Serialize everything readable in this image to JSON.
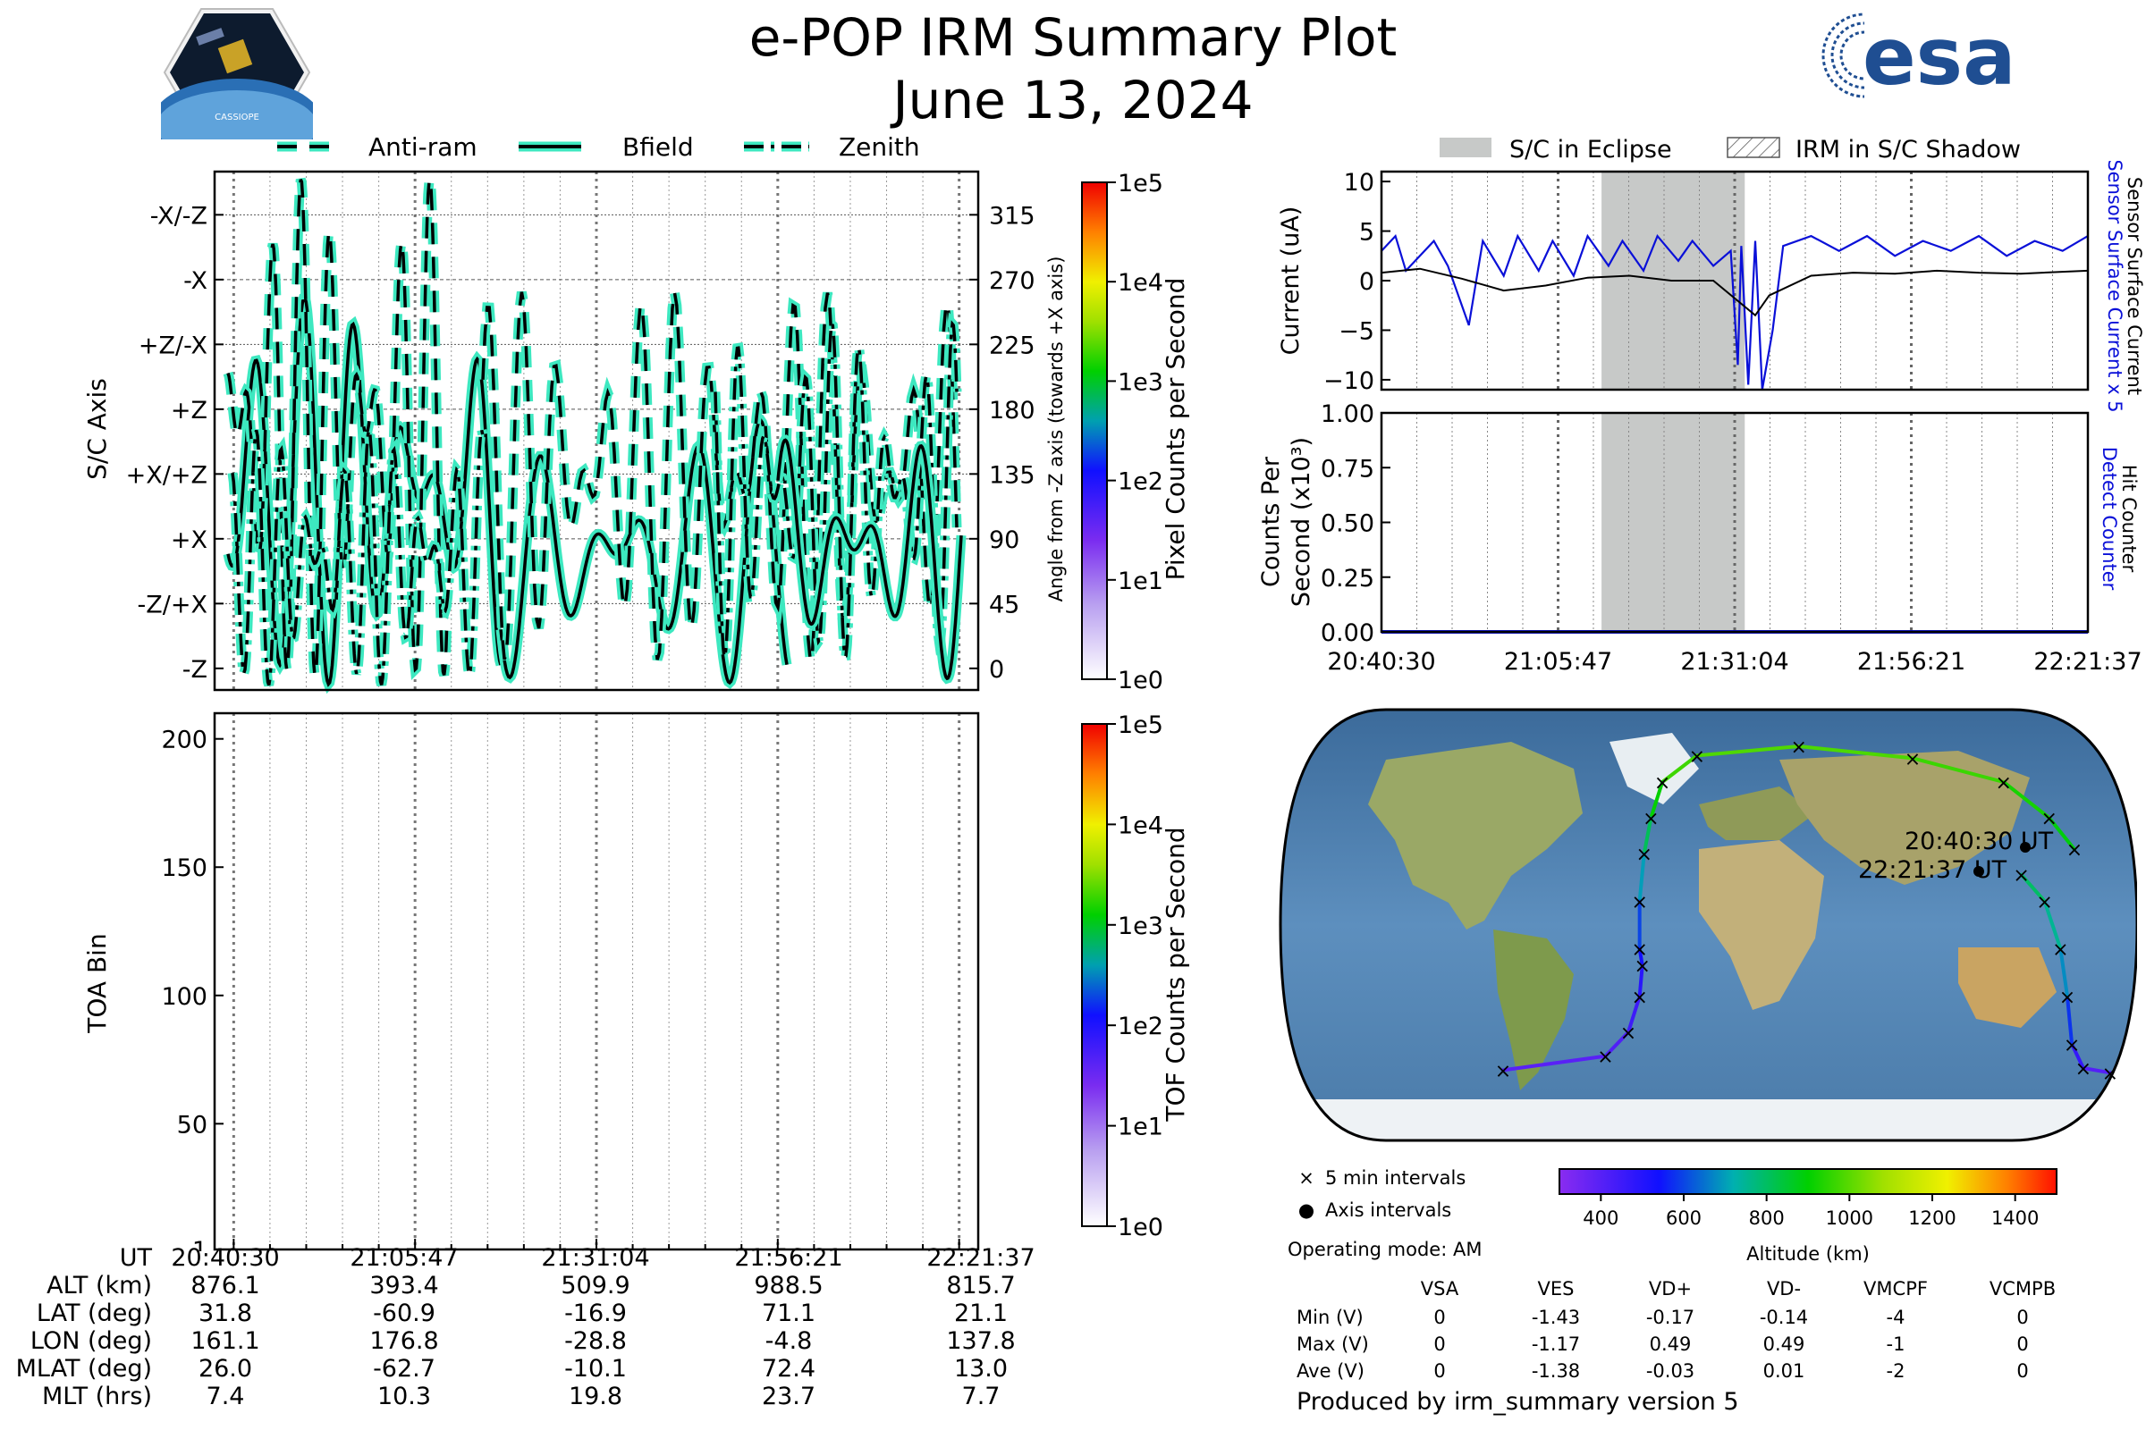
{
  "header": {
    "title": "e-POP IRM Summary Plot",
    "date": "June 13, 2024",
    "left_logo_text": "CASSIOPE",
    "right_logo_text": "esa"
  },
  "colors": {
    "trace_outline": "#3de8c0",
    "bfield": "#000000",
    "eclipse": "#c7c9c8",
    "sensor_current": "#0a10d8",
    "track_low": "#7a2cf0",
    "track_high": "#ff2a00"
  },
  "orientation_panel": {
    "legend": [
      "Anti-ram",
      "Bfield",
      "Zenith"
    ],
    "y_left_label": "S/C Axis",
    "y_left_ticks": [
      "-X/-Z",
      "-X",
      "+Z/-X",
      "+Z",
      "+X/+Z",
      "+X",
      "-Z/+X",
      "-Z"
    ],
    "y_right_label": "Angle from -Z axis (towards +X axis)",
    "y_right_ticks": [
      "315",
      "270",
      "225",
      "180",
      "135",
      "90",
      "45",
      "0"
    ],
    "ylim": [
      -15,
      345
    ],
    "colorbar_label": "Pixel Counts per Second",
    "colorbar_ticks": [
      "1e5",
      "1e4",
      "1e3",
      "1e2",
      "1e1",
      "1e0"
    ]
  },
  "toa_panel": {
    "y_label": "TOA Bin",
    "y_ticks": [
      "200",
      "150",
      "100",
      "50",
      "1"
    ],
    "ylim": [
      1,
      210
    ],
    "colorbar_label": "TOF Counts per Second",
    "colorbar_ticks": [
      "1e5",
      "1e4",
      "1e3",
      "1e2",
      "1e1",
      "1e0"
    ]
  },
  "ephemeris": {
    "row_labels": [
      "UT",
      "ALT (km)",
      "LAT (deg)",
      "LON (deg)",
      "MLAT (deg)",
      "MLT (hrs)"
    ],
    "columns": [
      [
        "20:40:30",
        "876.1",
        "31.8",
        "161.1",
        "26.0",
        "7.4"
      ],
      [
        "21:05:47",
        "393.4",
        "-60.9",
        "176.8",
        "-62.7",
        "10.3"
      ],
      [
        "21:31:04",
        "509.9",
        "-16.9",
        "-28.8",
        "-10.1",
        "19.8"
      ],
      [
        "21:56:21",
        "988.5",
        "71.1",
        "-4.8",
        "72.4",
        "23.7"
      ],
      [
        "22:21:37",
        "815.7",
        "21.1",
        "137.8",
        "13.0",
        "7.7"
      ]
    ]
  },
  "current_panel": {
    "legend": [
      "S/C in Eclipse",
      "IRM in S/C Shadow"
    ],
    "y_label": "Current (uA)",
    "y_ticks": [
      "10",
      "5",
      "0",
      "−5",
      "−10"
    ],
    "ylim": [
      -11,
      11
    ],
    "right_label_blue": "Sensor Surface Current x 5",
    "right_label_black": "Sensor Surface Current"
  },
  "counts_panel": {
    "y_label_line1": "Counts Per",
    "y_label_line2": "Second (x10³)",
    "y_ticks": [
      "1.00",
      "0.75",
      "0.50",
      "0.25",
      "0.00"
    ],
    "ylim": [
      0,
      1
    ],
    "right_label_blue": "Detect Counter",
    "right_label_black": "Hit Counter",
    "x_ticks": [
      "20:40:30",
      "21:05:47",
      "21:31:04",
      "21:56:21",
      "22:21:37"
    ]
  },
  "chart_data": {
    "type": "line",
    "x_unit": "UT",
    "eclipse_interval": [
      "21:12:00",
      "21:32:30"
    ],
    "hit_counter": {
      "name": "Hit Counter",
      "values": [
        0,
        0,
        0,
        0,
        0
      ]
    },
    "detect_counter": {
      "name": "Detect Counter",
      "values": [
        0,
        0,
        0,
        0,
        0
      ]
    },
    "sensor_surface_current": {
      "name": "Sensor Surface Current",
      "x": [
        "20:40:30",
        "20:46:00",
        "20:52:00",
        "20:58:00",
        "21:04:00",
        "21:10:00",
        "21:16:00",
        "21:22:00",
        "21:28:00",
        "21:34:00",
        "21:36:00",
        "21:42:00",
        "21:48:00",
        "21:54:00",
        "22:00:00",
        "22:06:00",
        "22:12:00",
        "22:21:37"
      ],
      "values": [
        0.8,
        1.2,
        0.2,
        -1.0,
        -0.5,
        0.3,
        0.5,
        0.0,
        0.0,
        -3.5,
        -1.5,
        0.5,
        0.8,
        0.7,
        1.0,
        0.8,
        0.7,
        1.0
      ]
    },
    "sensor_surface_current_x5": {
      "name": "Sensor Surface Current x 5",
      "x": [
        "20:40:30",
        "20:42:30",
        "20:44:00",
        "20:48:00",
        "20:50:00",
        "20:53:00",
        "20:55:00",
        "20:58:00",
        "21:00:00",
        "21:03:00",
        "21:05:00",
        "21:08:00",
        "21:10:00",
        "21:13:00",
        "21:15:00",
        "21:18:00",
        "21:20:00",
        "21:23:00",
        "21:25:00",
        "21:28:00",
        "21:30:30",
        "21:31:30",
        "21:32:00",
        "21:33:00",
        "21:34:00",
        "21:35:00",
        "21:36:30",
        "21:38:00",
        "21:42:00",
        "21:46:00",
        "21:50:00",
        "21:54:00",
        "21:58:00",
        "22:02:00",
        "22:06:00",
        "22:10:00",
        "22:14:00",
        "22:18:00",
        "22:21:37"
      ],
      "values": [
        3.0,
        4.5,
        1.0,
        4.0,
        1.5,
        -4.5,
        4.0,
        0.5,
        4.5,
        1.0,
        4.0,
        0.5,
        4.5,
        1.5,
        4.0,
        1.0,
        4.5,
        2.0,
        4.0,
        1.5,
        3.0,
        -8.5,
        3.5,
        -10.5,
        4.0,
        -11.0,
        -5.0,
        3.5,
        4.5,
        3.0,
        4.5,
        2.5,
        4.0,
        3.0,
        4.5,
        2.5,
        4.0,
        3.0,
        4.5
      ]
    },
    "ground_track": {
      "lat": [
        31.8,
        45.0,
        60.0,
        70.0,
        75.0,
        71.1,
        60.0,
        45.0,
        30.0,
        10.0,
        -10.0,
        -16.9,
        -30.0,
        -45.0,
        -55.0,
        -60.9,
        -62.0,
        -60.0,
        -50.0,
        -30.0,
        -10.0,
        10.0,
        21.1
      ],
      "lon": [
        161.1,
        150.0,
        130.0,
        90.0,
        40.0,
        -4.8,
        -20.0,
        -25.0,
        -28.0,
        -30.0,
        -30.0,
        -28.8,
        -30.0,
        -35.0,
        -45.0,
        -90.0,
        176.8,
        165.0,
        160.0,
        158.0,
        155.0,
        148.0,
        137.8
      ],
      "altitude_km": [
        876.1,
        900,
        950,
        980,
        990,
        988.5,
        950,
        860,
        760,
        640,
        560,
        509.9,
        470,
        430,
        400,
        393.4,
        393.4,
        420,
        520,
        640,
        720,
        780,
        815.7
      ]
    }
  },
  "map_legend": {
    "items": [
      "5 min intervals",
      "Axis intervals"
    ],
    "operating_mode": "Operating mode: AM",
    "label_start": "20:40:30 UT",
    "label_end": "22:21:37 UT"
  },
  "altitude_colorbar": {
    "label": "Altitude (km)",
    "ticks": [
      "400",
      "600",
      "800",
      "1000",
      "1200",
      "1400"
    ],
    "range": [
      300,
      1500
    ]
  },
  "voltage_table": {
    "headers": [
      "VSA",
      "VES",
      "VD+",
      "VD-",
      "VMCPF",
      "VCMPB"
    ],
    "rows": [
      {
        "label": "Min (V)",
        "values": [
          "0",
          "-1.43",
          "-0.17",
          "-0.14",
          "-4",
          "0"
        ]
      },
      {
        "label": "Max (V)",
        "values": [
          "0",
          "-1.17",
          "0.49",
          "0.49",
          "-1",
          "0"
        ]
      },
      {
        "label": "Ave (V)",
        "values": [
          "0",
          "-1.38",
          "-0.03",
          "0.01",
          "-2",
          "0"
        ]
      }
    ]
  },
  "footer": "Produced by irm_summary version 5"
}
